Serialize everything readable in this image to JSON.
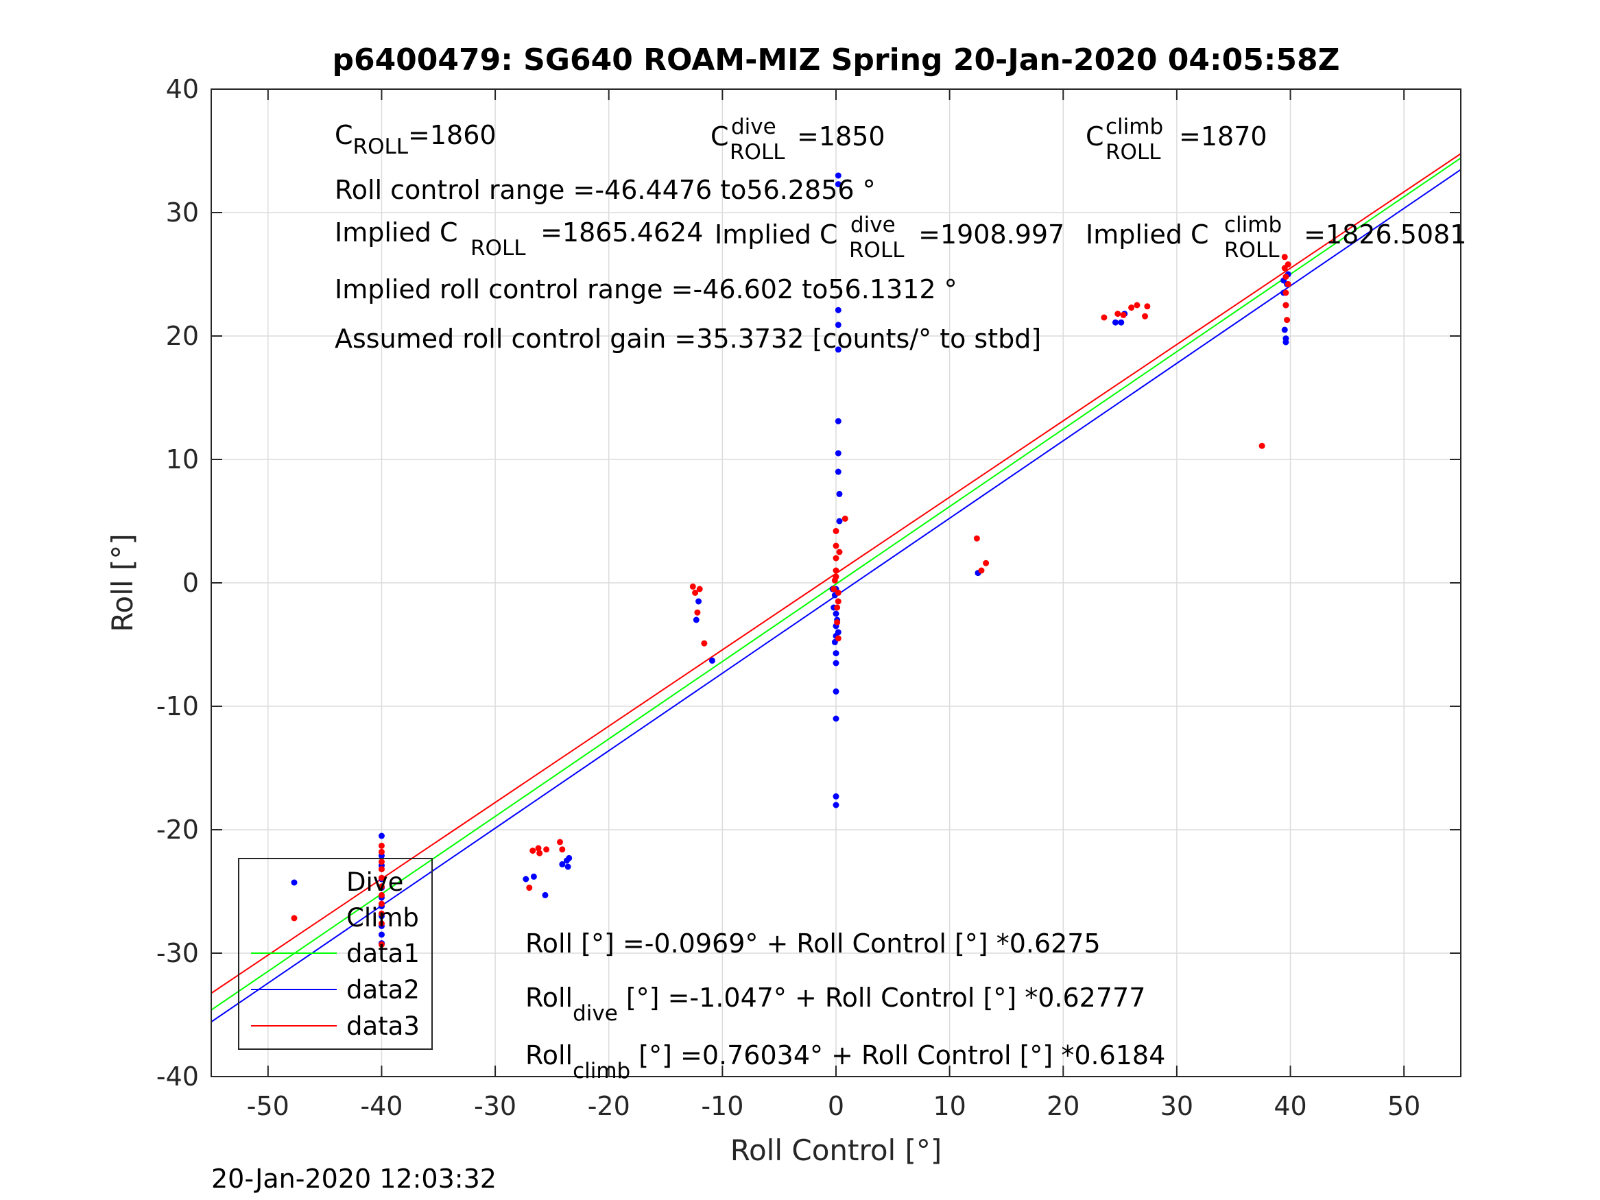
{
  "chart_data": {
    "type": "scatter",
    "title": "p6400479: SG640 ROAM-MIZ Spring 20-Jan-2020 04:05:58Z",
    "xlabel": "Roll Control [°]",
    "ylabel": "Roll [°]",
    "xlim": [
      -55,
      55
    ],
    "ylim": [
      -40,
      40
    ],
    "xticks": [
      -50,
      -40,
      -30,
      -20,
      -10,
      0,
      10,
      20,
      30,
      40,
      50
    ],
    "yticks": [
      -40,
      -30,
      -20,
      -10,
      0,
      10,
      20,
      30,
      40
    ],
    "grid": true,
    "legend_placement": "bottom-left",
    "timestamp": "20-Jan-2020 12:03:32",
    "colors": {
      "dive": "#0000ff",
      "climb": "#ff0000",
      "data1": "#00ff00",
      "data2": "#0000ff",
      "data3": "#ff0000"
    },
    "series": [
      {
        "name": "Dive",
        "kind": "points",
        "color": "#0000ff",
        "x": [
          -40,
          -40,
          -40,
          -40,
          -40,
          -40,
          -40,
          -40,
          -40,
          -40,
          -40,
          -27.3,
          -26.6,
          -25.6,
          -24.1,
          -23.7,
          -23.6,
          -23.5,
          -12.3,
          -12.1,
          -10.9,
          -0.1,
          -0.3,
          -0.2,
          -0.1,
          0,
          0,
          0,
          0,
          0,
          0,
          0,
          0,
          0,
          0,
          0.1,
          0.2,
          0.2,
          0.2,
          0.2,
          0.2,
          0.2,
          0.2,
          0.2,
          0.2,
          0.3,
          0.3,
          12.5,
          24.6,
          25.1,
          25.4,
          39.4,
          39.4,
          39.5,
          39.6,
          39.6,
          39.6,
          39.7,
          39.8
        ],
        "y": [
          -20.5,
          -22.1,
          -22.9,
          -24.0,
          -24.7,
          -25.5,
          -26.2,
          -27.0,
          -27.8,
          -28.5,
          -29.2,
          -24.0,
          -23.8,
          -25.3,
          -22.8,
          -22.5,
          -23.0,
          -22.3,
          -3.0,
          -1.5,
          -6.3,
          -1.0,
          -0.5,
          -2.0,
          -4.8,
          -2.5,
          -3.5,
          -4.3,
          -5.7,
          -6.5,
          -8.8,
          -11.0,
          -17.3,
          -18.0,
          -0.5,
          -3.0,
          -4.0,
          33.0,
          32.3,
          22.1,
          20.9,
          18.9,
          13.1,
          10.5,
          9.0,
          7.2,
          5.0,
          0.8,
          21.1,
          21.1,
          21.8,
          23.5,
          24.5,
          20.5,
          19.5,
          19.8,
          22.5,
          24.2,
          25.0
        ]
      },
      {
        "name": "Climb",
        "kind": "points",
        "color": "#ff0000",
        "x": [
          -40,
          -40,
          -40,
          -40,
          -40,
          -40,
          -40,
          -40,
          -40,
          -40,
          -40,
          -27.0,
          -26.7,
          -26.2,
          -26.1,
          -25.5,
          -24.3,
          -24.1,
          -12.6,
          -12.4,
          -12.2,
          -12.0,
          -11.6,
          -0.2,
          -0.1,
          0,
          0,
          0,
          0,
          0,
          0.1,
          0.1,
          0.2,
          0.2,
          0.2,
          0.3,
          0.8,
          12.4,
          12.8,
          13.2,
          23.6,
          24.8,
          25.3,
          26.0,
          26.5,
          27.2,
          27.4,
          37.5,
          39.5,
          39.5,
          39.6,
          39.6,
          39.6,
          39.7,
          39.8,
          39.8
        ],
        "y": [
          -21.3,
          -21.8,
          -22.6,
          -23.2,
          -23.9,
          -24.6,
          -25.3,
          -26.0,
          -26.8,
          -27.6,
          -29.3,
          -24.7,
          -21.7,
          -21.5,
          -21.9,
          -21.6,
          -21.0,
          -21.6,
          -0.3,
          -0.8,
          -2.4,
          -0.5,
          -4.9,
          -0.5,
          0.2,
          0.5,
          1.0,
          2.0,
          3.0,
          4.2,
          -3.2,
          -2.0,
          -1.5,
          -0.8,
          -4.5,
          2.5,
          5.2,
          3.6,
          1.0,
          1.6,
          21.5,
          21.8,
          21.7,
          22.3,
          22.5,
          21.6,
          22.4,
          11.1,
          26.4,
          25.5,
          24.8,
          23.5,
          22.5,
          21.3,
          25.8,
          24.2
        ]
      },
      {
        "name": "data1",
        "kind": "line",
        "color": "#00ff00",
        "x": [
          -55,
          55
        ],
        "y": [
          -34.61,
          34.42
        ]
      },
      {
        "name": "data2",
        "kind": "line",
        "color": "#0000ff",
        "x": [
          -55,
          55
        ],
        "y": [
          -35.57,
          33.48
        ]
      },
      {
        "name": "data3",
        "kind": "line",
        "color": "#ff0000",
        "x": [
          -55,
          55
        ],
        "y": [
          -33.25,
          34.77
        ]
      }
    ],
    "annotations": {
      "c_roll": {
        "base": "C",
        "sub": "ROLL",
        "value": "=1860"
      },
      "c_roll_dive": {
        "base": "C",
        "sup": "dive",
        "sub": "ROLL",
        "value": "=1850"
      },
      "c_roll_climb": {
        "base": "C",
        "sup": "climb",
        "sub": "ROLL",
        "value": "=1870"
      },
      "roll_control_range": "Roll control range =-46.4476 to56.2856 °",
      "implied_c_roll": {
        "prefix": "Implied C",
        "sub": "ROLL",
        "value": " =1865.4624"
      },
      "implied_c_roll_dive": {
        "prefix": "Implied C",
        "sup": "dive",
        "sub": "ROLL",
        "value": " =1908.997"
      },
      "implied_c_roll_climb": {
        "prefix": "Implied C",
        "sup": "climb",
        "sub": "ROLL",
        "value": " =1826.5081"
      },
      "implied_range": "Implied roll control range =-46.602 to56.1312 °",
      "gain": "Assumed roll control gain =35.3732 [counts/° to stbd]",
      "fit_all": "Roll [°] =-0.0969° + Roll Control [°] *0.6275",
      "fit_dive": {
        "base": "Roll",
        "sub": "dive",
        "value": " [°] =-1.047° + Roll Control [°] *0.62777"
      },
      "fit_climb": {
        "base": "Roll",
        "sub": "climb",
        "value": " [°] =0.76034° + Roll Control [°] *0.6184"
      }
    }
  }
}
